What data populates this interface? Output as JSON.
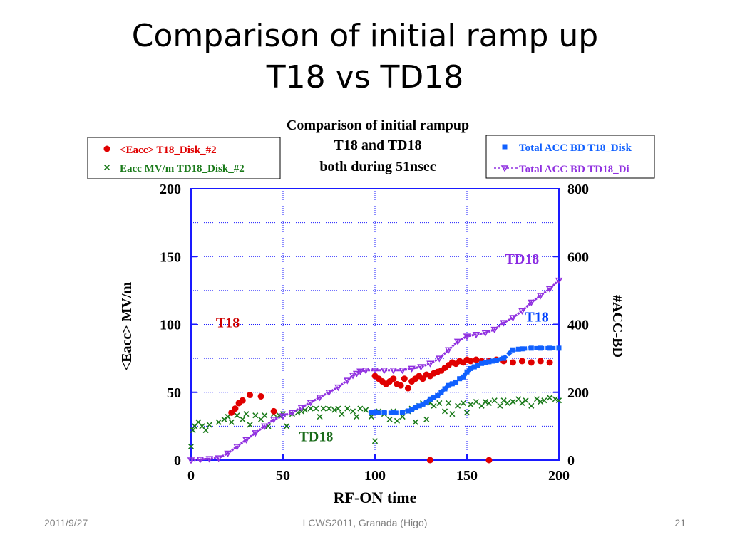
{
  "slide": {
    "title_line1": "Comparison of initial ramp up",
    "title_line2": "T18 vs TD18",
    "footer_date": "2011/9/27",
    "footer_center": "LCWS2011, Granada (Higo)",
    "page_number": "21"
  },
  "chart_data": {
    "type": "scatter",
    "title_lines": [
      "Comparison of initial rampup",
      "T18 and TD18",
      "both during 51nsec"
    ],
    "xlabel": "RF-ON time",
    "ylabel_left": "<Eacc> MV/m",
    "ylabel_right": "#ACC-BD",
    "xlim": [
      0,
      200
    ],
    "ylim_left": [
      0,
      200
    ],
    "ylim_right": [
      0,
      800
    ],
    "x_ticks": [
      "0",
      "50",
      "100",
      "150",
      "200"
    ],
    "y_left_ticks": [
      "0",
      "50",
      "100",
      "150",
      "200"
    ],
    "y_right_ticks": [
      "0",
      "200",
      "400",
      "600",
      "800"
    ],
    "grid": true,
    "legend_left": [
      "<Eacc>  T18_Disk_#2",
      "Eacc MV/m  TD18_Disk_#2"
    ],
    "legend_right": [
      "Total ACC BD T18_Disk",
      "Total ACC BD TD18_Di"
    ],
    "annotations": [
      {
        "text": "TD18",
        "color": "#8a2be2",
        "x": 180,
        "y_left": 145
      },
      {
        "text": "T18",
        "color": "#0040ff",
        "x": 188,
        "y_left": 102
      },
      {
        "text": "T18",
        "color": "#cc0000",
        "x": 20,
        "y_left": 98
      },
      {
        "text": "TD18",
        "color": "#1a6b1a",
        "x": 68,
        "y_left": 14
      }
    ],
    "series": [
      {
        "name": "<Eacc>  T18_Disk_#2",
        "axis": "left",
        "color": "#e00000",
        "marker": "dot",
        "points": [
          [
            22,
            35
          ],
          [
            24,
            38
          ],
          [
            26,
            42
          ],
          [
            28,
            44
          ],
          [
            32,
            48
          ],
          [
            38,
            47
          ],
          [
            45,
            36
          ],
          [
            100,
            62
          ],
          [
            102,
            60
          ],
          [
            104,
            58
          ],
          [
            106,
            56
          ],
          [
            108,
            58
          ],
          [
            110,
            60
          ],
          [
            112,
            56
          ],
          [
            114,
            55
          ],
          [
            116,
            60
          ],
          [
            118,
            53
          ],
          [
            120,
            58
          ],
          [
            122,
            60
          ],
          [
            124,
            62
          ],
          [
            126,
            60
          ],
          [
            128,
            63
          ],
          [
            130,
            62
          ],
          [
            132,
            64
          ],
          [
            134,
            65
          ],
          [
            136,
            66
          ],
          [
            138,
            68
          ],
          [
            140,
            70
          ],
          [
            142,
            72
          ],
          [
            144,
            71
          ],
          [
            146,
            73
          ],
          [
            148,
            72
          ],
          [
            150,
            74
          ],
          [
            152,
            73
          ],
          [
            155,
            74
          ],
          [
            158,
            73
          ],
          [
            162,
            73
          ],
          [
            166,
            74
          ],
          [
            170,
            73
          ],
          [
            175,
            72
          ],
          [
            180,
            73
          ],
          [
            185,
            72
          ],
          [
            190,
            73
          ],
          [
            195,
            72
          ],
          [
            130,
            0
          ],
          [
            162,
            0
          ]
        ]
      },
      {
        "name": "Eacc MV/m  TD18_Disk_#2",
        "axis": "left",
        "color": "#1a7a1a",
        "marker": "x",
        "points": [
          [
            0,
            10
          ],
          [
            1,
            22
          ],
          [
            2,
            25
          ],
          [
            4,
            28
          ],
          [
            6,
            25
          ],
          [
            8,
            22
          ],
          [
            10,
            26
          ],
          [
            15,
            28
          ],
          [
            18,
            30
          ],
          [
            20,
            32
          ],
          [
            22,
            28
          ],
          [
            25,
            33
          ],
          [
            28,
            30
          ],
          [
            30,
            34
          ],
          [
            32,
            26
          ],
          [
            35,
            33
          ],
          [
            38,
            30
          ],
          [
            40,
            33
          ],
          [
            42,
            25
          ],
          [
            45,
            34
          ],
          [
            48,
            33
          ],
          [
            50,
            34
          ],
          [
            52,
            25
          ],
          [
            55,
            34
          ],
          [
            58,
            35
          ],
          [
            60,
            36
          ],
          [
            62,
            37
          ],
          [
            65,
            38
          ],
          [
            68,
            38
          ],
          [
            70,
            32
          ],
          [
            72,
            38
          ],
          [
            75,
            38
          ],
          [
            78,
            37
          ],
          [
            80,
            38
          ],
          [
            82,
            34
          ],
          [
            85,
            38
          ],
          [
            88,
            36
          ],
          [
            90,
            32
          ],
          [
            92,
            38
          ],
          [
            95,
            37
          ],
          [
            98,
            32
          ],
          [
            100,
            14
          ],
          [
            102,
            36
          ],
          [
            105,
            34
          ],
          [
            108,
            30
          ],
          [
            110,
            36
          ],
          [
            112,
            29
          ],
          [
            115,
            32
          ],
          [
            118,
            36
          ],
          [
            120,
            38
          ],
          [
            122,
            28
          ],
          [
            124,
            40
          ],
          [
            126,
            42
          ],
          [
            128,
            30
          ],
          [
            130,
            42
          ],
          [
            132,
            40
          ],
          [
            135,
            42
          ],
          [
            138,
            36
          ],
          [
            140,
            42
          ],
          [
            142,
            34
          ],
          [
            145,
            40
          ],
          [
            148,
            42
          ],
          [
            150,
            35
          ],
          [
            152,
            41
          ],
          [
            155,
            43
          ],
          [
            158,
            40
          ],
          [
            160,
            43
          ],
          [
            162,
            42
          ],
          [
            165,
            44
          ],
          [
            168,
            40
          ],
          [
            170,
            44
          ],
          [
            172,
            42
          ],
          [
            175,
            43
          ],
          [
            178,
            45
          ],
          [
            180,
            42
          ],
          [
            182,
            44
          ],
          [
            185,
            40
          ],
          [
            188,
            45
          ],
          [
            190,
            43
          ],
          [
            192,
            44
          ],
          [
            195,
            46
          ],
          [
            198,
            45
          ],
          [
            200,
            44
          ]
        ]
      },
      {
        "name": "Total ACC BD T18_Disk",
        "axis": "right",
        "color": "#1060ff",
        "marker": "square",
        "points": [
          [
            98,
            140
          ],
          [
            100,
            140
          ],
          [
            105,
            140
          ],
          [
            110,
            140
          ],
          [
            115,
            140
          ],
          [
            118,
            145
          ],
          [
            120,
            150
          ],
          [
            122,
            155
          ],
          [
            124,
            160
          ],
          [
            126,
            165
          ],
          [
            128,
            170
          ],
          [
            130,
            180
          ],
          [
            132,
            185
          ],
          [
            134,
            190
          ],
          [
            136,
            200
          ],
          [
            138,
            210
          ],
          [
            140,
            220
          ],
          [
            142,
            225
          ],
          [
            144,
            230
          ],
          [
            146,
            240
          ],
          [
            148,
            245
          ],
          [
            150,
            260
          ],
          [
            152,
            270
          ],
          [
            154,
            275
          ],
          [
            156,
            280
          ],
          [
            158,
            285
          ],
          [
            160,
            287
          ],
          [
            162,
            290
          ],
          [
            164,
            292
          ],
          [
            166,
            295
          ],
          [
            170,
            300
          ],
          [
            175,
            325
          ],
          [
            178,
            327
          ],
          [
            180,
            328
          ],
          [
            185,
            330
          ],
          [
            190,
            330
          ],
          [
            195,
            330
          ],
          [
            200,
            330
          ]
        ]
      },
      {
        "name": "Total ACC BD TD18_Di",
        "axis": "right",
        "color": "#9030e0",
        "marker": "triangle",
        "points": [
          [
            0,
            0
          ],
          [
            5,
            2
          ],
          [
            10,
            4
          ],
          [
            15,
            6
          ],
          [
            20,
            20
          ],
          [
            25,
            40
          ],
          [
            30,
            60
          ],
          [
            35,
            80
          ],
          [
            40,
            100
          ],
          [
            45,
            120
          ],
          [
            50,
            130
          ],
          [
            55,
            140
          ],
          [
            60,
            155
          ],
          [
            65,
            170
          ],
          [
            70,
            185
          ],
          [
            75,
            200
          ],
          [
            80,
            215
          ],
          [
            85,
            235
          ],
          [
            88,
            250
          ],
          [
            90,
            255
          ],
          [
            92,
            262
          ],
          [
            95,
            265
          ],
          [
            100,
            265
          ],
          [
            105,
            265
          ],
          [
            110,
            265
          ],
          [
            115,
            265
          ],
          [
            120,
            270
          ],
          [
            125,
            275
          ],
          [
            130,
            285
          ],
          [
            135,
            300
          ],
          [
            140,
            325
          ],
          [
            145,
            350
          ],
          [
            150,
            365
          ],
          [
            155,
            370
          ],
          [
            160,
            375
          ],
          [
            165,
            385
          ],
          [
            170,
            405
          ],
          [
            175,
            420
          ],
          [
            180,
            440
          ],
          [
            185,
            465
          ],
          [
            190,
            485
          ],
          [
            195,
            505
          ],
          [
            200,
            530
          ]
        ]
      }
    ]
  }
}
